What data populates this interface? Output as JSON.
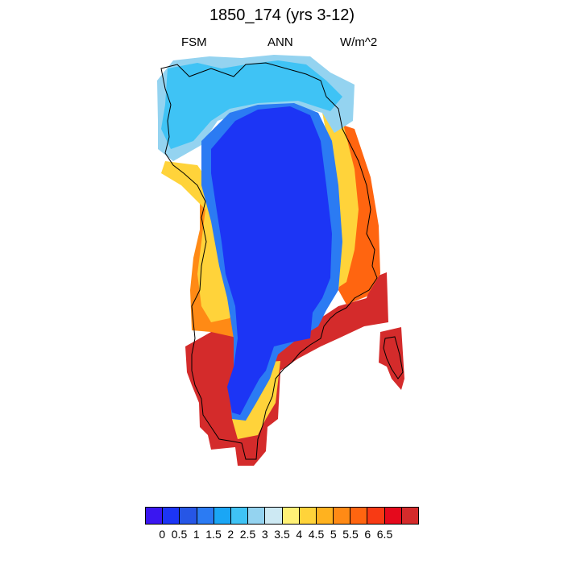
{
  "title": "1850_174 (yrs 3-12)",
  "left_label": "FSM",
  "center_label": "ANN",
  "right_label": "W/m^2",
  "colorbar": {
    "colors": [
      "#3a16f0",
      "#1c35f5",
      "#2656e6",
      "#2b7bf3",
      "#1aa6f5",
      "#3fc3f5",
      "#94d3f0",
      "#cde9f3",
      "#fff176",
      "#ffd33a",
      "#ffb21f",
      "#ff8a15",
      "#ff6510",
      "#f83a14",
      "#e5091c",
      "#d42b2b"
    ],
    "labels": [
      "0",
      "0.5",
      "1",
      "1.5",
      "2",
      "2.5",
      "3",
      "3.5",
      "4",
      "4.5",
      "5",
      "5.5",
      "6",
      "6.5"
    ]
  }
}
